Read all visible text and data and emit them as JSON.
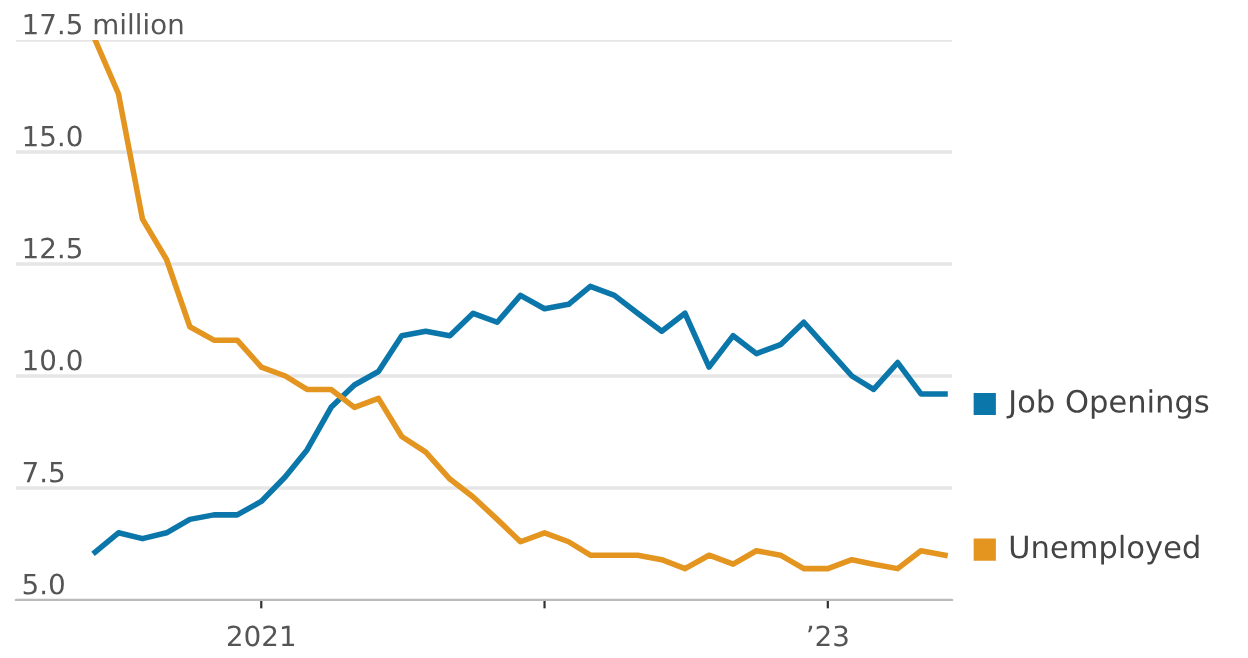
{
  "chart_data": {
    "type": "line",
    "x": [
      "2020-06",
      "2020-07",
      "2020-08",
      "2020-09",
      "2020-10",
      "2020-11",
      "2020-12",
      "2021-01",
      "2021-02",
      "2021-03",
      "2021-04",
      "2021-05",
      "2021-06",
      "2021-07",
      "2021-08",
      "2021-09",
      "2021-10",
      "2021-11",
      "2021-12",
      "2022-01",
      "2022-02",
      "2022-03",
      "2022-04",
      "2022-05",
      "2022-06",
      "2022-07",
      "2022-08",
      "2022-09",
      "2022-10",
      "2022-11",
      "2022-12",
      "2023-01",
      "2023-02",
      "2023-03",
      "2023-04",
      "2023-05",
      "2023-06"
    ],
    "series": [
      {
        "name": "Job Openings",
        "color": "#0b76a9",
        "values": [
          6.07,
          6.5,
          6.37,
          6.5,
          6.8,
          6.9,
          6.9,
          7.2,
          7.75,
          8.35,
          9.3,
          9.8,
          10.1,
          10.9,
          11.0,
          10.9,
          11.4,
          11.2,
          11.8,
          11.5,
          11.6,
          12.0,
          11.8,
          11.4,
          11.0,
          11.4,
          10.2,
          10.9,
          10.5,
          10.7,
          11.2,
          10.6,
          10.0,
          9.7,
          10.3,
          9.6,
          9.6
        ]
      },
      {
        "name": "Unemployed",
        "color": "#e3951f",
        "values": [
          17.5,
          16.3,
          13.5,
          12.6,
          11.1,
          10.8,
          10.8,
          10.2,
          10.0,
          9.7,
          9.7,
          9.3,
          9.5,
          8.65,
          8.3,
          7.7,
          7.3,
          6.8,
          6.3,
          6.5,
          6.3,
          6.0,
          6.0,
          6.0,
          5.9,
          5.7,
          6.0,
          5.8,
          6.1,
          6.0,
          5.7,
          5.7,
          5.9,
          5.8,
          5.7,
          6.1,
          6.0
        ]
      }
    ],
    "xlim": [
      "2020-02-20",
      "2023-06-10"
    ],
    "xticks": [
      {
        "value": "2021-01",
        "label": "2021"
      },
      {
        "value": "2022-01",
        "label": null
      },
      {
        "value": "2023-01",
        "label": "’23"
      }
    ],
    "ylim": [
      5.0,
      17.5
    ],
    "yticks": [
      {
        "value": 5.0,
        "label": "5.0"
      },
      {
        "value": 7.5,
        "label": "7.5"
      },
      {
        "value": 10.0,
        "label": "10.0"
      },
      {
        "value": 12.5,
        "label": "12.5"
      },
      {
        "value": 15.0,
        "label": "15.0"
      },
      {
        "value": 17.5,
        "label": "17.5 million"
      }
    ],
    "grid": "y",
    "legend": "right",
    "marker": "none",
    "line_style": "solid"
  }
}
